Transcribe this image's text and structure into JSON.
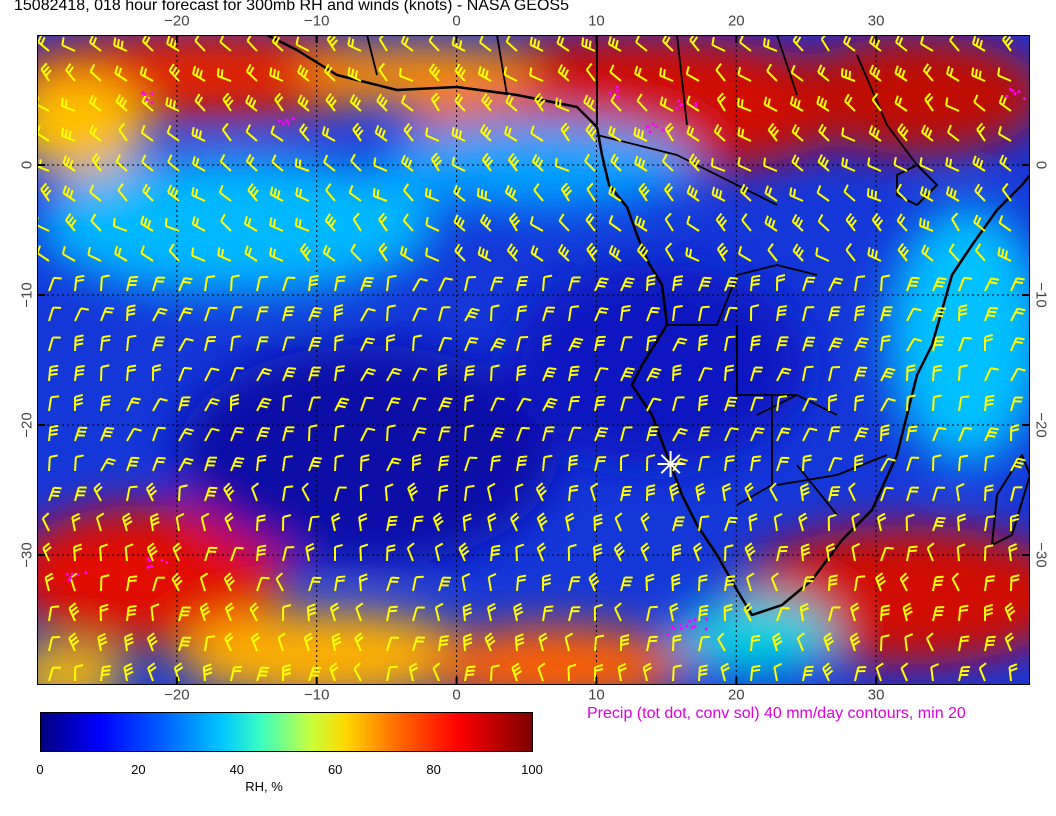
{
  "title": "15082418, 018 hour forecast for 300mb RH and winds (knots) - NASA GEOS5",
  "precip_note": "Precip (tot dot, conv sol) 40 mm/day contours, min 20",
  "map": {
    "lon_range": [
      -30,
      41
    ],
    "lat_range": [
      -40,
      10
    ],
    "lon_ticks": [
      -20,
      -10,
      0,
      10,
      20,
      30
    ],
    "lat_ticks": [
      0,
      -10,
      -20,
      -30
    ],
    "lon_tick_labels": [
      "−20",
      "−10",
      "0",
      "10",
      "20",
      "30"
    ],
    "lat_tick_labels": [
      "0",
      "−10",
      "−20",
      "−30"
    ],
    "marker": {
      "lon": 15.3,
      "lat": -23.0,
      "symbol": "star",
      "color": "#ffffff"
    },
    "barb_color": "#ffff00",
    "precip_color": "#ff00ff",
    "coast_color": "#000000"
  },
  "colorbar": {
    "label": "RH, %",
    "min": 0,
    "max": 100,
    "ticks": [
      "0",
      "20",
      "40",
      "60",
      "80",
      "100"
    ],
    "colors": [
      "#00007f",
      "#0000ff",
      "#0060ff",
      "#00c8ff",
      "#3cffc0",
      "#c8ff3c",
      "#ffd800",
      "#ff7000",
      "#ff0000",
      "#7f0000"
    ]
  }
}
